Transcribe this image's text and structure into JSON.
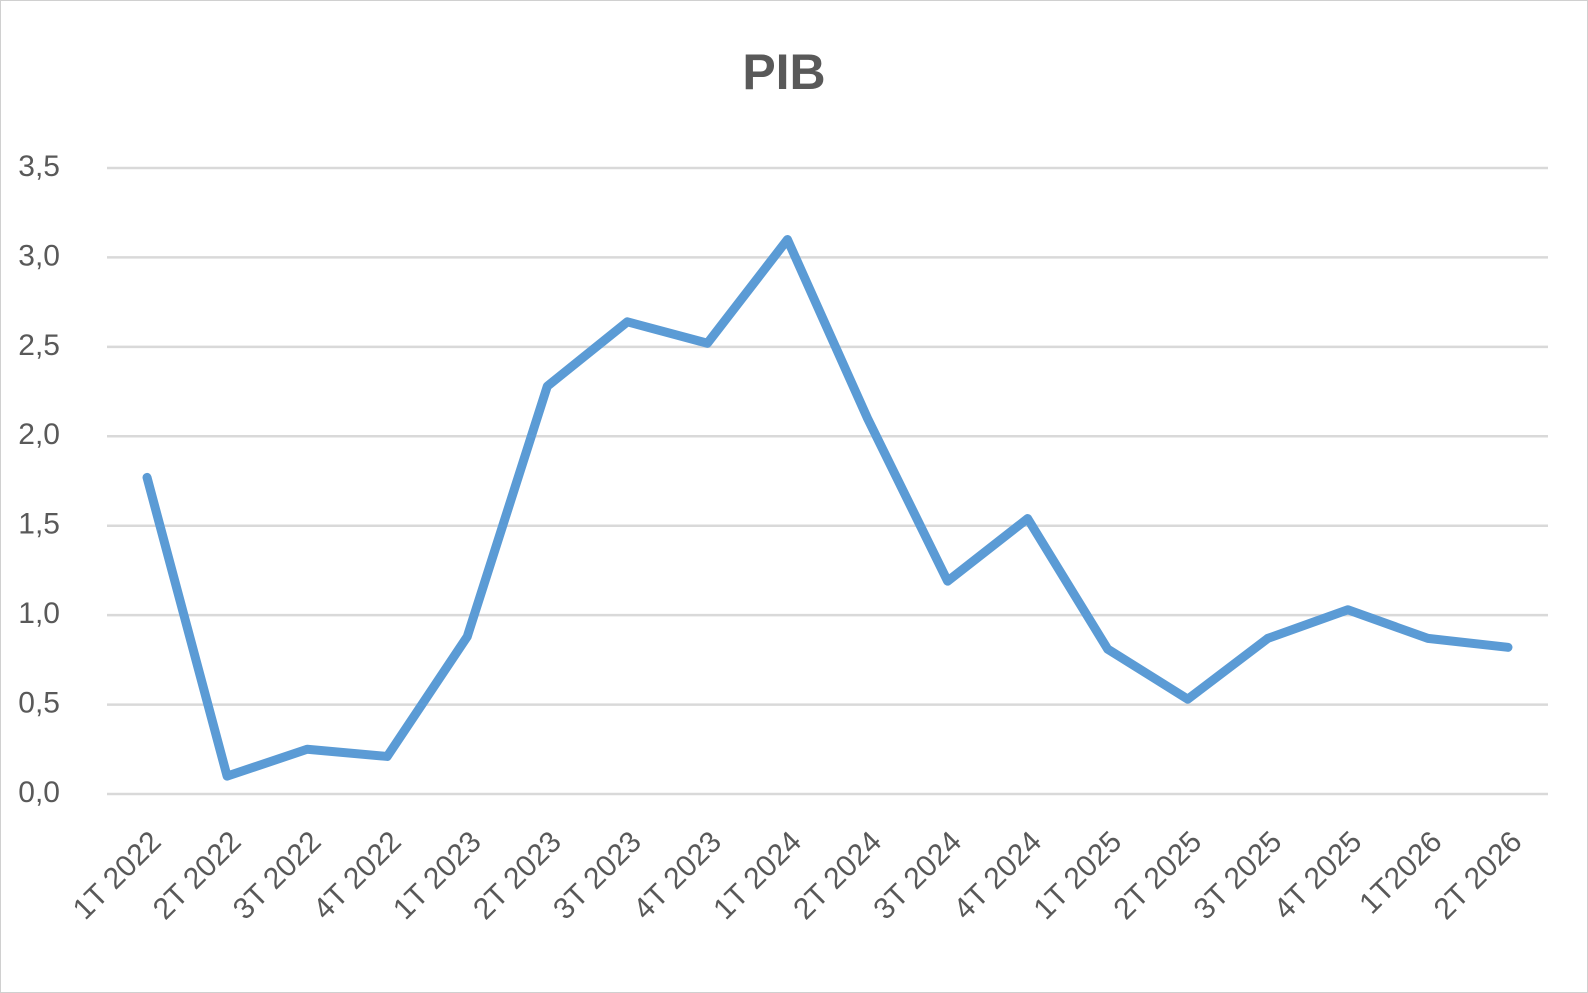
{
  "chart_data": {
    "type": "line",
    "title": "PIB",
    "categories": [
      "1T 2022",
      "2T 2022",
      "3T 2022",
      "4T 2022",
      "1T 2023",
      "2T 2023",
      "3T 2023",
      "4T 2023",
      "1T 2024",
      "2T 2024",
      "3T 2024",
      "4T 2024",
      "1T 2025",
      "2T 2025",
      "3T 2025",
      "4T 2025",
      "1T2026",
      "2T 2026"
    ],
    "series": [
      {
        "color": "#5b9bd5",
        "values": [
          1.77,
          0.1,
          0.25,
          0.21,
          0.88,
          2.28,
          2.64,
          2.52,
          3.1,
          2.1,
          1.19,
          1.54,
          0.81,
          0.53,
          0.87,
          1.03,
          0.87,
          0.82
        ]
      }
    ],
    "ylim": [
      0,
      3.5
    ],
    "yticks": [
      {
        "value": 0,
        "label": "0,0"
      },
      {
        "value": 0.5,
        "label": "0,5"
      },
      {
        "value": 1,
        "label": "1,0"
      },
      {
        "value": 1.5,
        "label": "1,5"
      },
      {
        "value": 2,
        "label": "2,0"
      },
      {
        "value": 2.5,
        "label": "2,5"
      },
      {
        "value": 3,
        "label": "3,0"
      },
      {
        "value": 3.5,
        "label": "3,5"
      }
    ],
    "grid": true
  }
}
